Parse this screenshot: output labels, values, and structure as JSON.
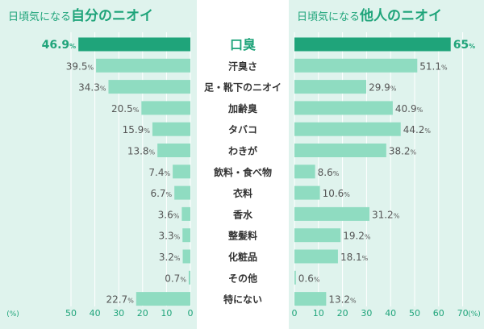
{
  "colors": {
    "panel_bg": "#dff3ed",
    "bar": "#8fdcc1",
    "bar_highlight": "#1fa47a",
    "text_green": "#1fa47a",
    "value_text": "#555555",
    "category_text": "#333333",
    "gridline": "#ffffff"
  },
  "chart_data": {
    "type": "bar",
    "title": "",
    "categories": [
      "口臭",
      "汗臭さ",
      "足・靴下のニオイ",
      "加齢臭",
      "タバコ",
      "わきが",
      "飲料・食べ物",
      "衣料",
      "香水",
      "整髪料",
      "化粧品",
      "その他",
      "特にない"
    ],
    "highlight_index": 0,
    "series": [
      {
        "name": "日頃気になる自分のニオイ",
        "title_prefix": "日頃気になる",
        "title_main": "自分のニオイ",
        "values": [
          46.9,
          39.5,
          34.3,
          20.5,
          15.9,
          13.8,
          7.4,
          6.7,
          3.6,
          3.3,
          3.2,
          0.7,
          22.7
        ],
        "value_labels": [
          "46.9",
          "39.5",
          "34.3",
          "20.5",
          "15.9",
          "13.8",
          "7.4",
          "6.7",
          "3.6",
          "3.3",
          "3.2",
          "0.7",
          "22.7"
        ],
        "xlim": [
          0,
          50
        ],
        "ticks": [
          50,
          40,
          30,
          20,
          10,
          0
        ],
        "direction": "reversed"
      },
      {
        "name": "日頃気になる他人のニオイ",
        "title_prefix": "日頃気になる",
        "title_main": "他人のニオイ",
        "values": [
          65,
          51.1,
          29.9,
          40.9,
          44.2,
          38.2,
          8.6,
          10.6,
          31.2,
          19.2,
          18.1,
          0.6,
          13.2
        ],
        "value_labels": [
          "65",
          "51.1",
          "29.9",
          "40.9",
          "44.2",
          "38.2",
          "8.6",
          "10.6",
          "31.2",
          "19.2",
          "18.1",
          "0.6",
          "13.2"
        ],
        "xlim": [
          0,
          70
        ],
        "ticks": [
          0,
          10,
          20,
          30,
          40,
          50,
          60,
          70
        ],
        "direction": "normal"
      }
    ],
    "unit_label": "(%)",
    "value_suffix": "%"
  }
}
